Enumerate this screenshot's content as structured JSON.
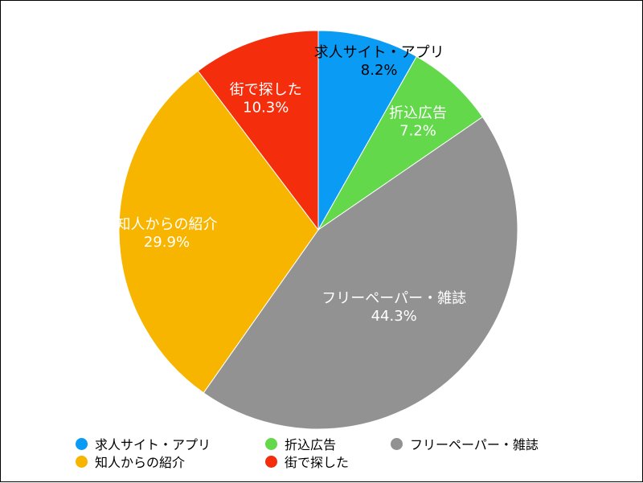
{
  "chart_data": {
    "type": "pie",
    "slices": [
      {
        "label": "求人サイト・アプリ",
        "value": 8.2,
        "display": "8.2%",
        "color": "#0A9BF5"
      },
      {
        "label": "折込広告",
        "value": 7.2,
        "display": "7.2%",
        "color": "#62D84A"
      },
      {
        "label": "フリーペーパー・雑誌",
        "value": 44.3,
        "display": "44.3%",
        "color": "#929292"
      },
      {
        "label": "知人からの紹介",
        "value": 29.9,
        "display": "29.9%",
        "color": "#F7B500"
      },
      {
        "label": "街で探した",
        "value": 10.3,
        "display": "10.3%",
        "color": "#F42E0D"
      }
    ],
    "start_angle": "12 o'clock",
    "direction": "clockwise",
    "legend_position": "bottom"
  }
}
